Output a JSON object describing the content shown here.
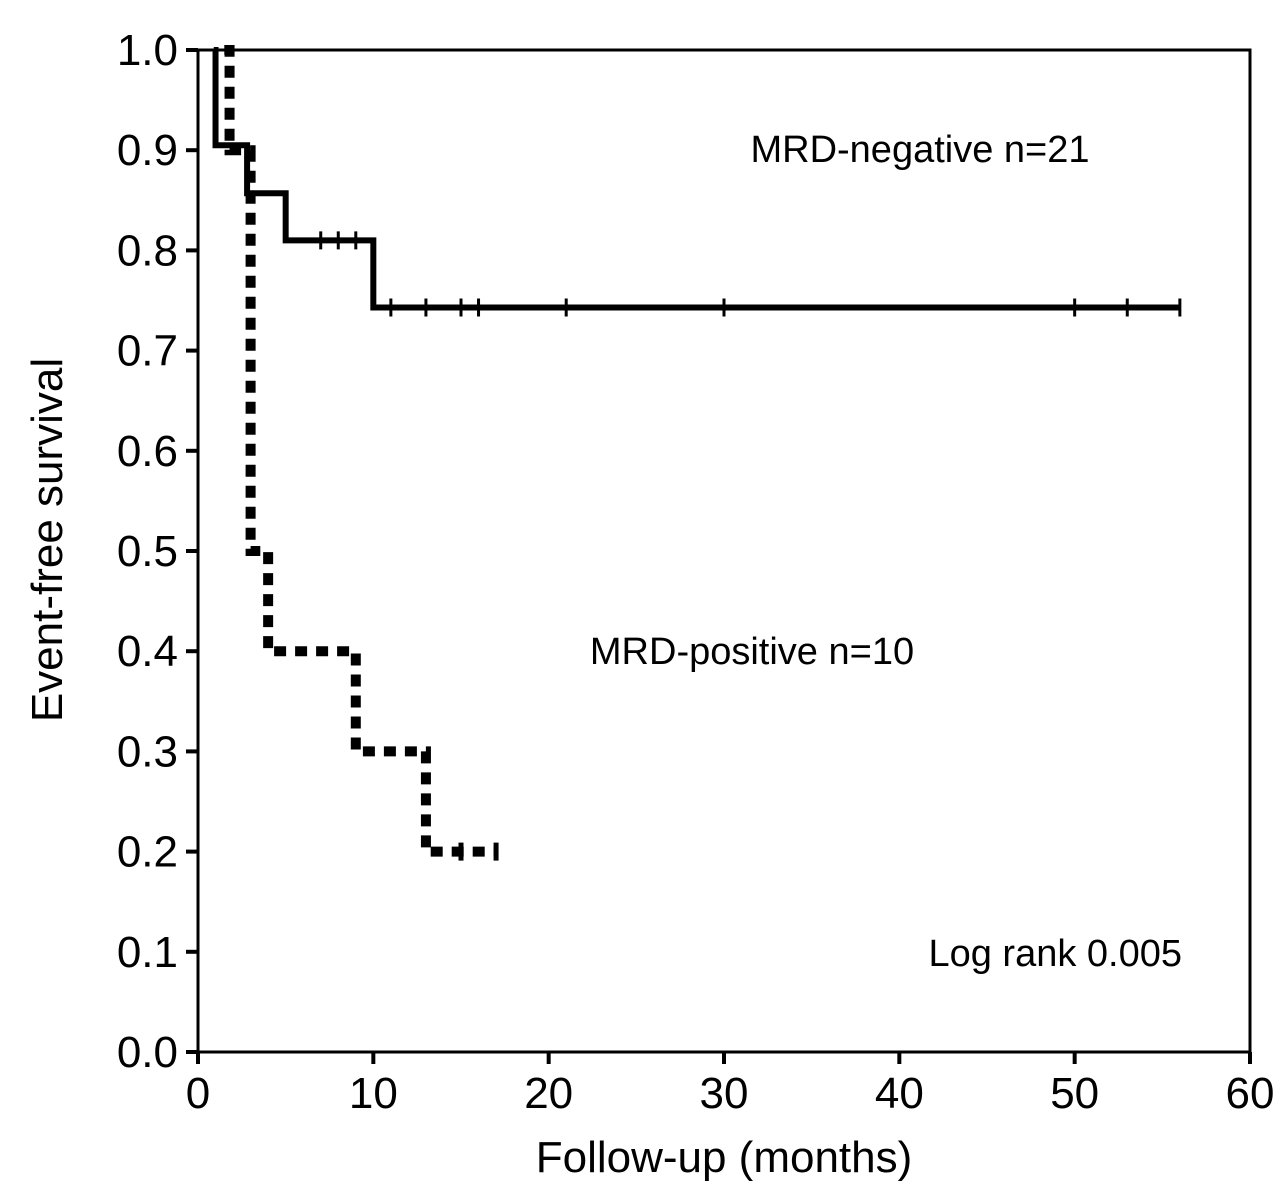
{
  "chart_data": {
    "type": "line",
    "subtype": "kaplan-meier",
    "title": "",
    "xlabel": "Follow-up (months)",
    "ylabel": "Event-free survival",
    "xlim": [
      0,
      60
    ],
    "ylim": [
      0,
      1
    ],
    "x_ticks": [
      0,
      10,
      20,
      30,
      40,
      50,
      60
    ],
    "y_ticks": [
      "0.0",
      "0.1",
      "0.2",
      "0.3",
      "0.4",
      "0.5",
      "0.6",
      "0.7",
      "0.8",
      "0.9",
      "1.0"
    ],
    "grid": false,
    "series": [
      {
        "name": "MRD-negative n=21",
        "style": "solid",
        "steps": [
          [
            0.9,
            1.0
          ],
          [
            1.0,
            0.905
          ],
          [
            2.8,
            0.857
          ],
          [
            5.0,
            0.81
          ],
          [
            10.0,
            0.743
          ],
          [
            56.0,
            0.743
          ]
        ],
        "censored": [
          [
            7.0,
            0.81
          ],
          [
            8.0,
            0.81
          ],
          [
            9.0,
            0.81
          ],
          [
            11.0,
            0.743
          ],
          [
            13.0,
            0.743
          ],
          [
            15.0,
            0.743
          ],
          [
            16.0,
            0.743
          ],
          [
            21.0,
            0.743
          ],
          [
            30.0,
            0.743
          ],
          [
            50.0,
            0.743
          ],
          [
            53.0,
            0.743
          ],
          [
            56.0,
            0.743
          ]
        ]
      },
      {
        "name": "MRD-positive n=10",
        "style": "dotted",
        "steps": [
          [
            1.5,
            1.0
          ],
          [
            1.8,
            0.9
          ],
          [
            3.0,
            0.5
          ],
          [
            4.0,
            0.4
          ],
          [
            9.0,
            0.3
          ],
          [
            13.0,
            0.2
          ],
          [
            17.0,
            0.2
          ]
        ],
        "censored": [
          [
            15.0,
            0.2
          ],
          [
            17.0,
            0.2
          ]
        ]
      }
    ],
    "annotations": [
      {
        "text": "MRD-negative n=21",
        "x": 40,
        "y": 0.9
      },
      {
        "text": "MRD-positive n=10",
        "x": 30.5,
        "y": 0.4
      },
      {
        "text": "Log rank 0.005",
        "x": 56,
        "y": 0.1
      }
    ]
  }
}
